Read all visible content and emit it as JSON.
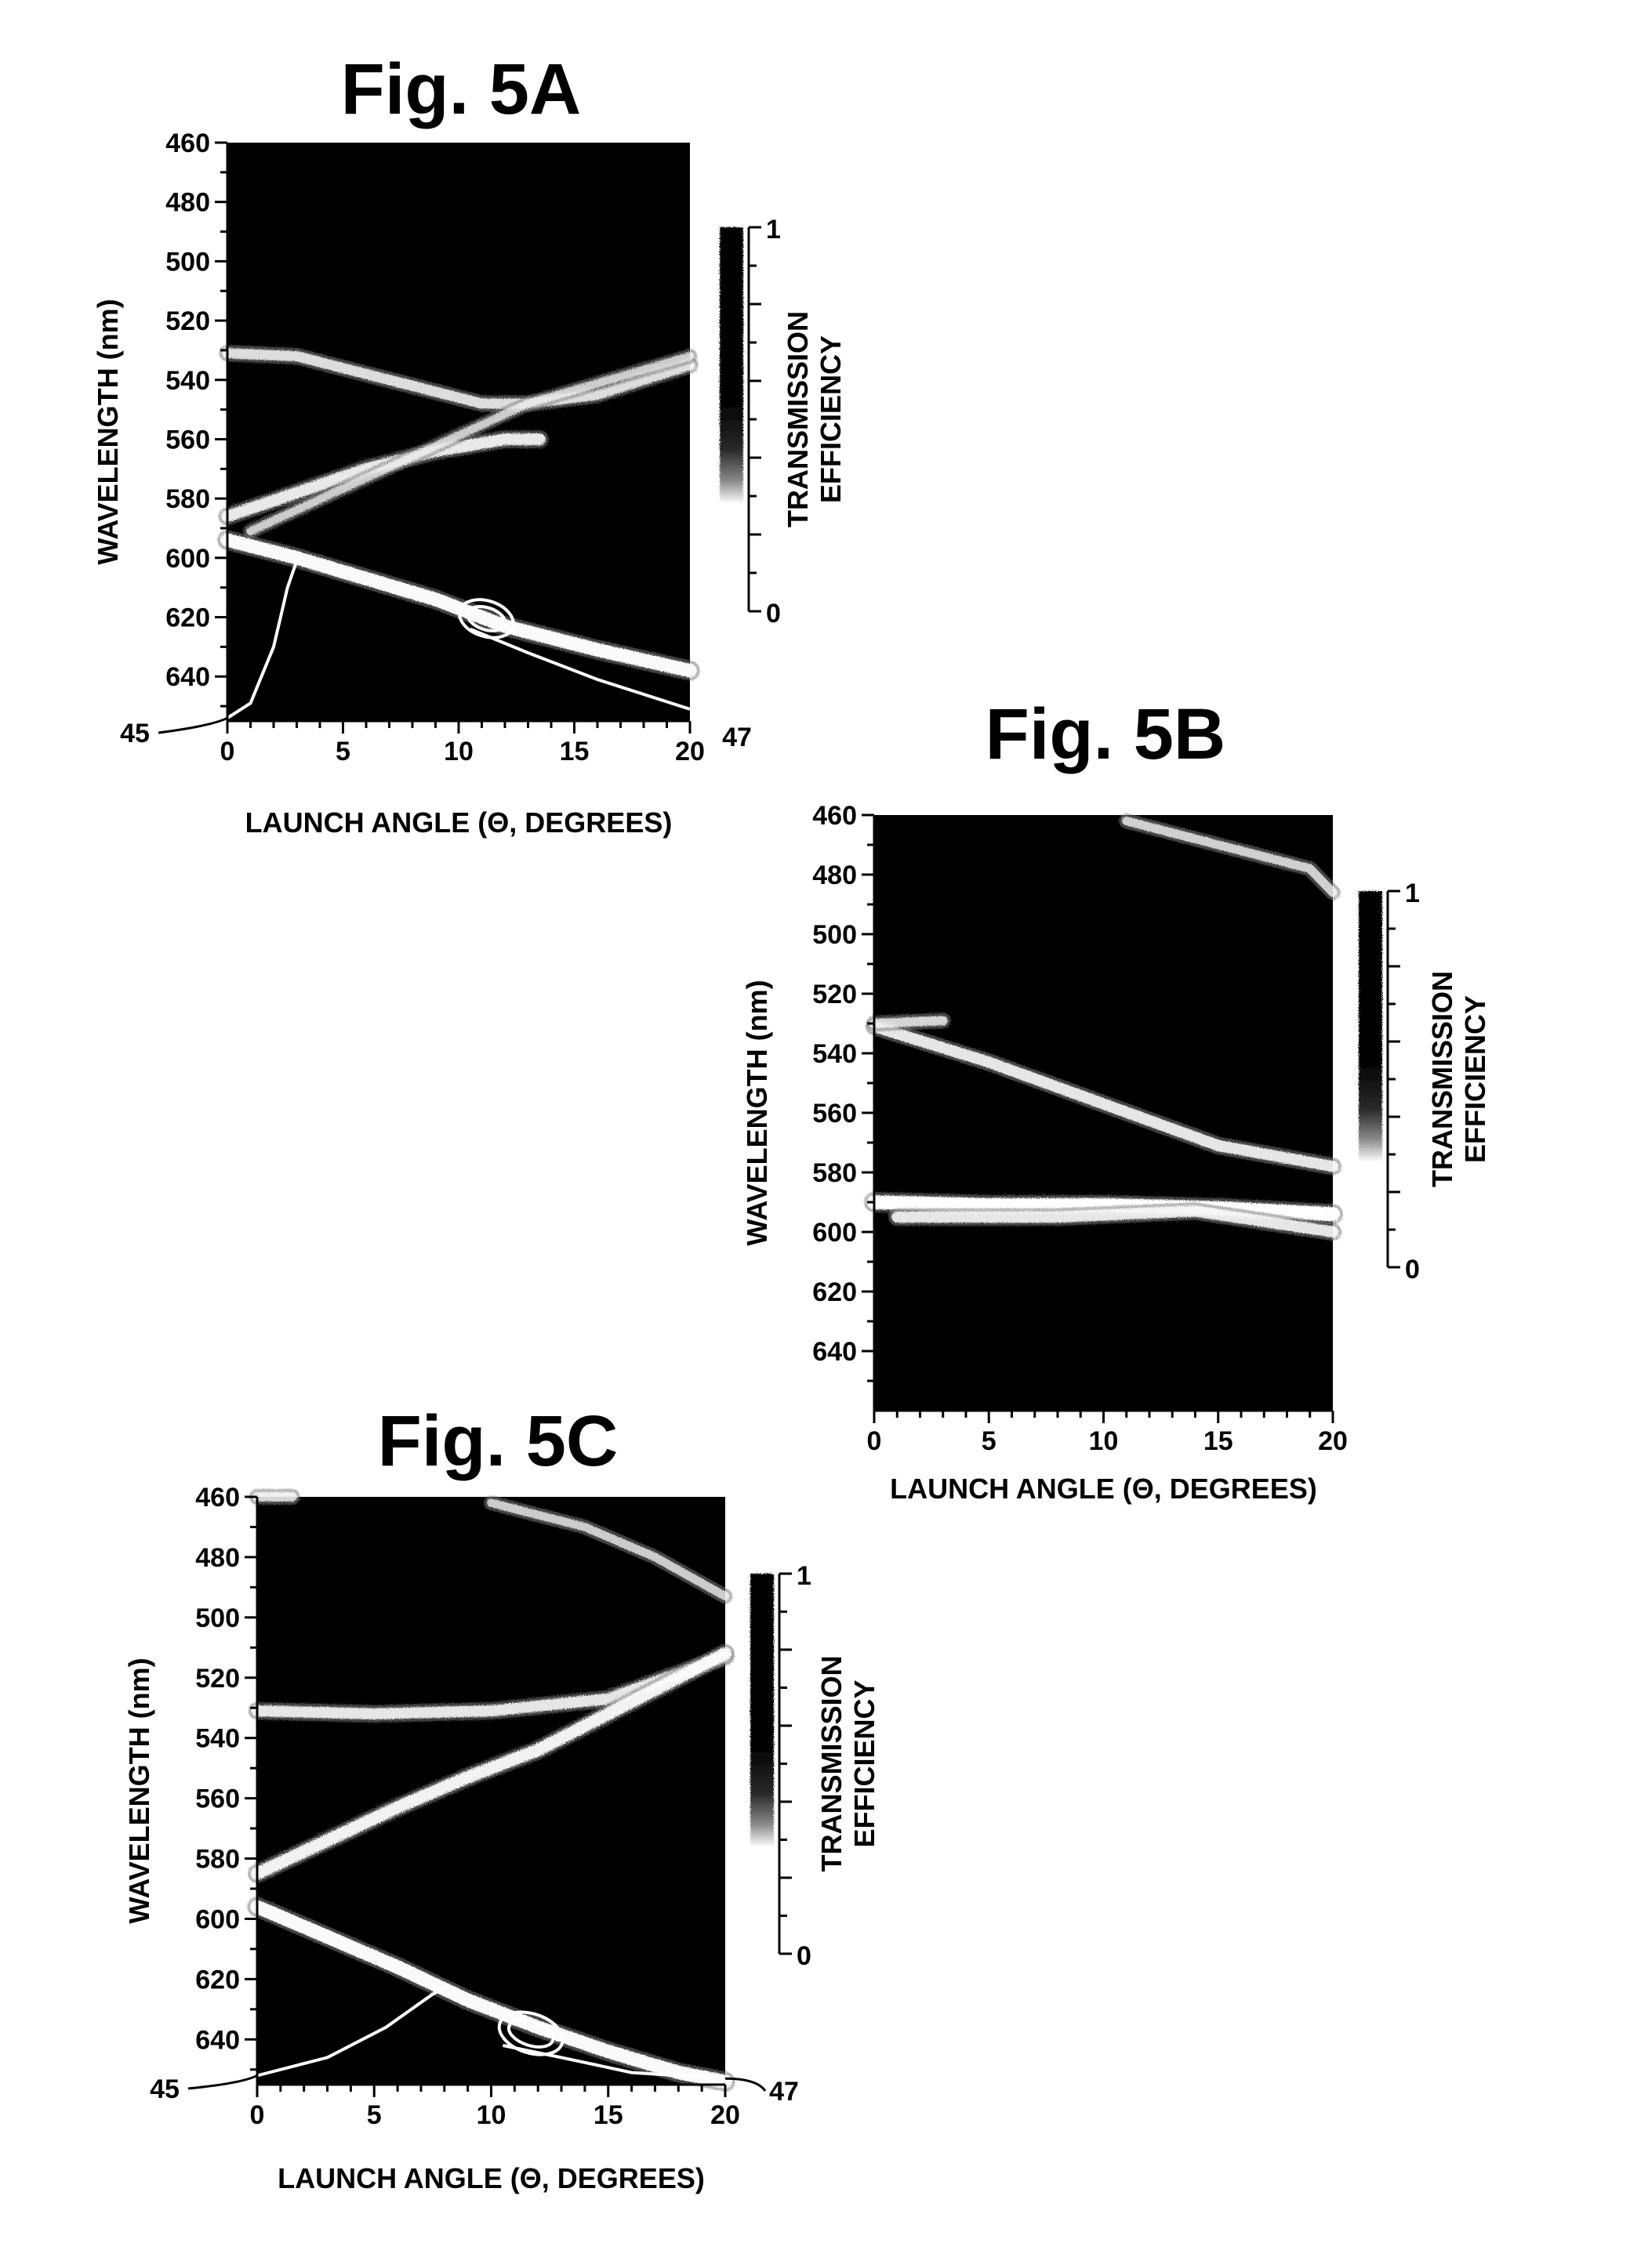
{
  "chart_data": [
    {
      "id": "5A",
      "type": "heatmap",
      "title": "Fig. 5A",
      "xlabel": "LAUNCH ANGLE (Θ, DEGREES)",
      "ylabel": "WAVELENGTH (nm)",
      "xlim": [
        0,
        20
      ],
      "ylim": [
        460,
        655
      ],
      "xticks": [
        0,
        5,
        10,
        15,
        20
      ],
      "yticks": [
        460,
        480,
        500,
        520,
        540,
        560,
        580,
        600,
        620,
        640
      ],
      "colorbar": {
        "title_lines": [
          "TRANSMISSION",
          "EFFICIENCY"
        ],
        "min": 0,
        "max": 1,
        "min_label": "0",
        "max_label": "1"
      },
      "bands": [
        {
          "points": [
            [
              0,
              531
            ],
            [
              3,
              532
            ],
            [
              7,
              540
            ],
            [
              11,
              548
            ],
            [
              13,
              548
            ],
            [
              16,
              545
            ],
            [
              20,
              535
            ]
          ],
          "intensity": 0.6
        },
        {
          "points": [
            [
              0,
              586
            ],
            [
              3,
              578
            ],
            [
              6,
              570
            ],
            [
              9,
              564
            ],
            [
              12,
              560
            ],
            [
              13.5,
              560
            ]
          ],
          "intensity": 0.75
        },
        {
          "points": [
            [
              0,
              594
            ],
            [
              3,
              600
            ],
            [
              6,
              607
            ],
            [
              9,
              614
            ],
            [
              12,
              623
            ],
            [
              16,
              631
            ],
            [
              20,
              638
            ]
          ],
          "intensity": 0.95
        },
        {
          "points": [
            [
              1,
              591
            ],
            [
              13,
              548
            ],
            [
              20,
              532
            ]
          ],
          "intensity": 0.4
        }
      ],
      "overlay_curves": [
        {
          "points": [
            [
              0,
              654
            ],
            [
              1,
              649
            ],
            [
              2,
              630
            ],
            [
              2.6,
              610
            ],
            [
              3,
              601
            ]
          ]
        },
        {
          "points": [
            [
              10.5,
              624
            ],
            [
              13,
              632
            ],
            [
              16,
              641
            ],
            [
              20,
              651
            ]
          ]
        }
      ],
      "ellipses": [
        {
          "cx": 11.2,
          "cy": 620.5,
          "rx": 1.2,
          "ry": 6
        }
      ],
      "refs": [
        {
          "label": "45",
          "side": "left",
          "y": 654
        },
        {
          "label": "47",
          "side": "right",
          "y": 655
        }
      ]
    },
    {
      "id": "5B",
      "type": "heatmap",
      "title": "Fig. 5B",
      "xlabel": "LAUNCH ANGLE (Θ, DEGREES)",
      "ylabel": "WAVELENGTH (nm)",
      "xlim": [
        0,
        20
      ],
      "ylim": [
        460,
        660
      ],
      "xticks": [
        0,
        5,
        10,
        15,
        20
      ],
      "yticks": [
        460,
        480,
        500,
        520,
        540,
        560,
        580,
        600,
        620,
        640
      ],
      "colorbar": {
        "title_lines": [
          "TRANSMISSION",
          "EFFICIENCY"
        ],
        "min": 0,
        "max": 1,
        "min_label": "0",
        "max_label": "1"
      },
      "bands": [
        {
          "points": [
            [
              0,
              590
            ],
            [
              5,
              591
            ],
            [
              10,
              591
            ],
            [
              15,
              592
            ],
            [
              20,
              594
            ]
          ],
          "intensity": 1.0
        },
        {
          "points": [
            [
              1,
              595
            ],
            [
              8,
              595
            ],
            [
              14,
              593
            ],
            [
              20,
              600
            ]
          ],
          "intensity": 0.7
        },
        {
          "points": [
            [
              0,
              531
            ],
            [
              5,
              543
            ],
            [
              10,
              557
            ],
            [
              15,
              571
            ],
            [
              20,
              578
            ]
          ],
          "intensity": 0.7
        },
        {
          "points": [
            [
              11,
              462
            ],
            [
              15,
              470
            ],
            [
              19,
              478
            ],
            [
              20,
              486
            ]
          ],
          "intensity": 0.45
        },
        {
          "points": [
            [
              0,
              530
            ],
            [
              3,
              529
            ]
          ],
          "intensity": 0.5
        }
      ],
      "overlay_curves": [],
      "ellipses": [],
      "refs": []
    },
    {
      "id": "5C",
      "type": "heatmap",
      "title": "Fig. 5C",
      "xlabel": "LAUNCH ANGLE (Θ, DEGREES)",
      "ylabel": "WAVELENGTH (nm)",
      "xlim": [
        0,
        20
      ],
      "ylim": [
        460,
        655
      ],
      "xticks": [
        0,
        5,
        10,
        15,
        20
      ],
      "yticks": [
        460,
        480,
        500,
        520,
        540,
        560,
        580,
        600,
        620,
        640
      ],
      "colorbar": {
        "title_lines": [
          "TRANSMISSION",
          "EFFICIENCY"
        ],
        "min": 0,
        "max": 1,
        "min_label": "0",
        "max_label": "1"
      },
      "bands": [
        {
          "points": [
            [
              0,
              531
            ],
            [
              5,
              532
            ],
            [
              10,
              531
            ],
            [
              15,
              527
            ],
            [
              20,
              513
            ]
          ],
          "intensity": 0.7
        },
        {
          "points": [
            [
              0,
              585
            ],
            [
              3,
              574
            ],
            [
              6,
              563
            ],
            [
              9,
              553
            ],
            [
              12,
              544
            ],
            [
              16,
              528
            ],
            [
              20,
              512
            ]
          ],
          "intensity": 0.85
        },
        {
          "points": [
            [
              0,
              596
            ],
            [
              3,
              606
            ],
            [
              6,
              616
            ],
            [
              9,
              627
            ],
            [
              12,
              636
            ],
            [
              15,
              644
            ],
            [
              18,
              651
            ],
            [
              20,
              654
            ]
          ],
          "intensity": 0.95
        },
        {
          "points": [
            [
              10,
              462
            ],
            [
              14,
              470
            ],
            [
              17,
              480
            ],
            [
              20,
              493
            ]
          ],
          "intensity": 0.4
        },
        {
          "points": [
            [
              0,
              460
            ],
            [
              1.5,
              460
            ]
          ],
          "intensity": 0.5
        }
      ],
      "overlay_curves": [
        {
          "points": [
            [
              0,
              652
            ],
            [
              3,
              646
            ],
            [
              5.5,
              636
            ],
            [
              7.5,
              625
            ],
            [
              8.2,
              622
            ]
          ]
        },
        {
          "points": [
            [
              10.5,
              642
            ],
            [
              13,
              646
            ],
            [
              16,
              651
            ],
            [
              20,
              653
            ]
          ]
        }
      ],
      "ellipses": [
        {
          "cx": 11.7,
          "cy": 638,
          "rx": 1.4,
          "ry": 6.5
        }
      ],
      "refs": [
        {
          "label": "45",
          "side": "left",
          "y": 652
        },
        {
          "label": "47",
          "side": "right",
          "y": 653
        }
      ]
    }
  ]
}
